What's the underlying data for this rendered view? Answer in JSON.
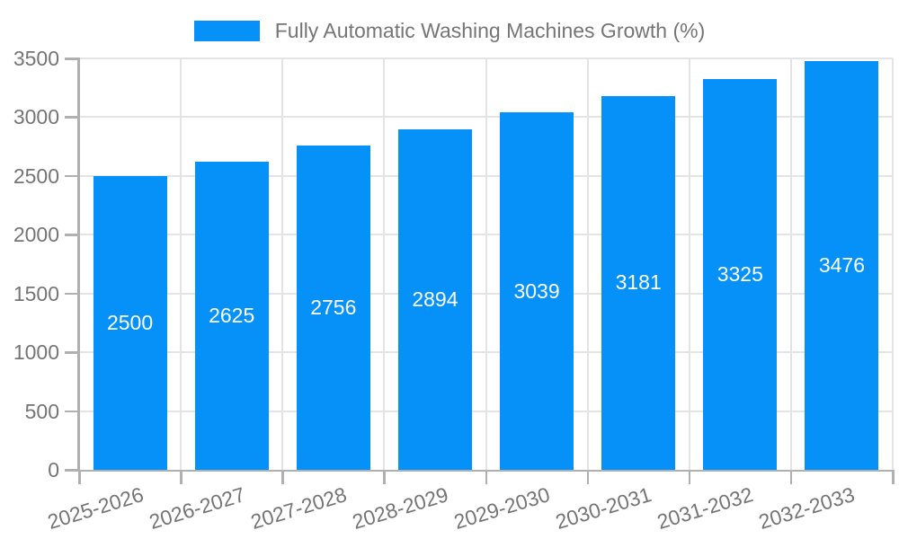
{
  "colors": {
    "accent": "#0591f8",
    "grid": "#e4e4e4",
    "axis": "#b0b0b0",
    "text": "#757575",
    "bar_label": "#ffffff",
    "background": "#ffffff"
  },
  "legend": {
    "label": "Fully Automatic Washing Machines Growth (%)"
  },
  "chart_data": {
    "type": "bar",
    "title": "",
    "xlabel": "",
    "ylabel": "",
    "categories": [
      "2025-2026",
      "2026-2027",
      "2027-2028",
      "2028-2029",
      "2029-2030",
      "2030-2031",
      "2031-2032",
      "2032-2033"
    ],
    "series": [
      {
        "name": "Fully Automatic Washing Machines Growth (%)",
        "values": [
          2500,
          2625,
          2756,
          2894,
          3039,
          3181,
          3325,
          3476
        ]
      }
    ],
    "bar_value_labels": [
      "2500",
      "2625",
      "2756",
      "2894",
      "3039",
      "3181",
      "3325",
      "3476"
    ],
    "ylim": [
      0,
      3500
    ],
    "yticks": [
      0,
      500,
      1000,
      1500,
      2000,
      2500,
      3000,
      3500
    ],
    "ytick_labels": [
      "0",
      "500",
      "1000",
      "1500",
      "2000",
      "2500",
      "3000",
      "3500"
    ],
    "grid": true,
    "gridlines": "horizontal-and-vertical-band-boundaries",
    "legend_position": "top-center",
    "x_label_rotation_deg": -17
  }
}
